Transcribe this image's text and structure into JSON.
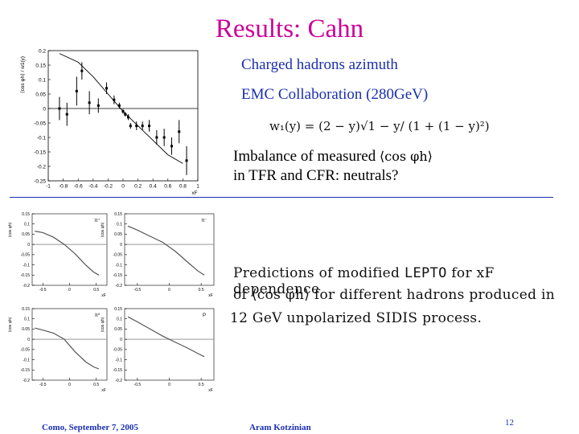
{
  "slide": {
    "title": "Results: Cahn",
    "subtitle_line1": "Charged hadrons azimuth",
    "subtitle_line2": "EMC Collaboration (280GeV)",
    "formula": "w₁(y) = (2 − y)√1 − y/ (1 + (1 − y)²)",
    "imbalance_prefix": "Imbalance of measured ",
    "imbalance_symbol": "⟨cos φh⟩",
    "imbalance_line2": "in TFR and CFR: neutrals?",
    "prediction_line1_a": "Predictions of modified ",
    "prediction_line1_code": "LEPTO",
    "prediction_line1_b": " for xF dependence",
    "prediction_line2": "of ⟨cos φh⟩ for different hadrons produced in",
    "prediction_line3": "12 GeV unpolarized SIDIS process.",
    "footer_left": "Como, September 7,  2005",
    "footer_center": "Aram Kotzinian",
    "page_number": "12"
  },
  "colors": {
    "title": "#cc0099",
    "accent": "#1a2fb0"
  },
  "chart_data": [
    {
      "type": "scatter",
      "ylabel": "⟨cos φh⟩ / w1(y)",
      "xlabel": "xF",
      "xlim": [
        -1,
        1
      ],
      "ylim": [
        -0.25,
        0.2
      ],
      "xticks": [
        "-1",
        "-0.8",
        "-0.6",
        "-0.4",
        "-0.2",
        "0",
        "0.2",
        "0.4",
        "0.6",
        "0.8",
        "1"
      ],
      "yticks": [
        "0.2",
        "0.15",
        "0.1",
        "0.05",
        "0",
        "-0.05",
        "-0.1",
        "-0.15",
        "-0.2",
        "-0.25"
      ],
      "points": [
        {
          "x": -0.85,
          "y": 0.0,
          "err": 0.04
        },
        {
          "x": -0.75,
          "y": -0.02,
          "err": 0.04
        },
        {
          "x": -0.62,
          "y": 0.06,
          "err": 0.05
        },
        {
          "x": -0.55,
          "y": 0.13,
          "err": 0.03
        },
        {
          "x": -0.45,
          "y": 0.02,
          "err": 0.04
        },
        {
          "x": -0.33,
          "y": 0.01,
          "err": 0.025
        },
        {
          "x": -0.22,
          "y": 0.07,
          "err": 0.02
        },
        {
          "x": -0.12,
          "y": 0.03,
          "err": 0.015
        },
        {
          "x": -0.05,
          "y": 0.01,
          "err": 0.01
        },
        {
          "x": 0.0,
          "y": -0.01,
          "err": 0.008
        },
        {
          "x": 0.03,
          "y": -0.02,
          "err": 0.008
        },
        {
          "x": 0.07,
          "y": -0.03,
          "err": 0.01
        },
        {
          "x": 0.1,
          "y": -0.06,
          "err": 0.01
        },
        {
          "x": 0.18,
          "y": -0.06,
          "err": 0.015
        },
        {
          "x": 0.26,
          "y": -0.06,
          "err": 0.015
        },
        {
          "x": 0.35,
          "y": -0.06,
          "err": 0.02
        },
        {
          "x": 0.45,
          "y": -0.1,
          "err": 0.025
        },
        {
          "x": 0.55,
          "y": -0.1,
          "err": 0.03
        },
        {
          "x": 0.65,
          "y": -0.13,
          "err": 0.03
        },
        {
          "x": 0.75,
          "y": -0.08,
          "err": 0.04
        },
        {
          "x": 0.85,
          "y": -0.18,
          "err": 0.05
        }
      ],
      "curve": [
        {
          "x": -0.85,
          "y": 0.19
        },
        {
          "x": -0.6,
          "y": 0.16
        },
        {
          "x": -0.4,
          "y": 0.11
        },
        {
          "x": -0.2,
          "y": 0.05
        },
        {
          "x": 0.0,
          "y": -0.01
        },
        {
          "x": 0.2,
          "y": -0.06
        },
        {
          "x": 0.4,
          "y": -0.11
        },
        {
          "x": 0.6,
          "y": -0.16
        },
        {
          "x": 0.8,
          "y": -0.19
        }
      ]
    },
    {
      "type": "line",
      "label": "π⁺",
      "xlabel": "xF",
      "ylabel": "⟨cos φh⟩",
      "xlim": [
        -0.7,
        0.7
      ],
      "ylim": [
        -0.2,
        0.15
      ],
      "xticks": [
        "-0.5",
        "0",
        "0.5"
      ],
      "yticks": [
        "0.15",
        "0.1",
        "0.05",
        "0",
        "-0.05",
        "-0.1",
        "-0.15",
        "-0.2"
      ],
      "curve": [
        {
          "x": -0.65,
          "y": 0.065
        },
        {
          "x": -0.5,
          "y": 0.058
        },
        {
          "x": -0.3,
          "y": 0.035
        },
        {
          "x": -0.1,
          "y": 0.0
        },
        {
          "x": 0.1,
          "y": -0.045
        },
        {
          "x": 0.3,
          "y": -0.1
        },
        {
          "x": 0.45,
          "y": -0.135
        },
        {
          "x": 0.55,
          "y": -0.15
        }
      ]
    },
    {
      "type": "line",
      "label": "π⁻",
      "xlabel": "xF",
      "ylabel": "⟨cos φh⟩",
      "xlim": [
        -0.7,
        0.7
      ],
      "ylim": [
        -0.2,
        0.15
      ],
      "xticks": [
        "-0.5",
        "0",
        "0.5"
      ],
      "yticks": [
        "0.15",
        "0.1",
        "0.05",
        "0",
        "-0.05",
        "-0.1",
        "-0.15",
        "-0.2"
      ],
      "curve": [
        {
          "x": -0.65,
          "y": 0.09
        },
        {
          "x": -0.5,
          "y": 0.07
        },
        {
          "x": -0.3,
          "y": 0.04
        },
        {
          "x": -0.1,
          "y": 0.01
        },
        {
          "x": 0.1,
          "y": -0.035
        },
        {
          "x": 0.3,
          "y": -0.09
        },
        {
          "x": 0.45,
          "y": -0.13
        },
        {
          "x": 0.55,
          "y": -0.15
        }
      ]
    },
    {
      "type": "line",
      "label": "π⁰",
      "xlabel": "xF",
      "ylabel": "⟨cos φh⟩",
      "xlim": [
        -0.7,
        0.7
      ],
      "ylim": [
        -0.2,
        0.15
      ],
      "xticks": [
        "-0.5",
        "0",
        "0.5"
      ],
      "yticks": [
        "0.15",
        "0.1",
        "0.05",
        "0",
        "-0.05",
        "-0.1",
        "-0.15",
        "-0.2"
      ],
      "curve": [
        {
          "x": -0.65,
          "y": 0.055
        },
        {
          "x": -0.5,
          "y": 0.045
        },
        {
          "x": -0.3,
          "y": 0.03
        },
        {
          "x": -0.1,
          "y": 0.0
        },
        {
          "x": 0.1,
          "y": -0.06
        },
        {
          "x": 0.3,
          "y": -0.11
        },
        {
          "x": 0.45,
          "y": -0.135
        },
        {
          "x": 0.55,
          "y": -0.145
        }
      ]
    },
    {
      "type": "line",
      "label": "P",
      "xlabel": "xF",
      "ylabel": "⟨cos φh⟩",
      "xlim": [
        -0.7,
        0.7
      ],
      "ylim": [
        -0.2,
        0.15
      ],
      "xticks": [
        "-0.5",
        "0",
        "0.5"
      ],
      "yticks": [
        "0.15",
        "0.1",
        "0.05",
        "0",
        "-0.05",
        "-0.1",
        "-0.15",
        "-0.2"
      ],
      "curve": [
        {
          "x": -0.65,
          "y": 0.11
        },
        {
          "x": -0.5,
          "y": 0.085
        },
        {
          "x": -0.3,
          "y": 0.05
        },
        {
          "x": -0.1,
          "y": 0.015
        },
        {
          "x": 0.1,
          "y": -0.015
        },
        {
          "x": 0.3,
          "y": -0.045
        },
        {
          "x": 0.45,
          "y": -0.07
        },
        {
          "x": 0.55,
          "y": -0.085
        }
      ]
    }
  ]
}
